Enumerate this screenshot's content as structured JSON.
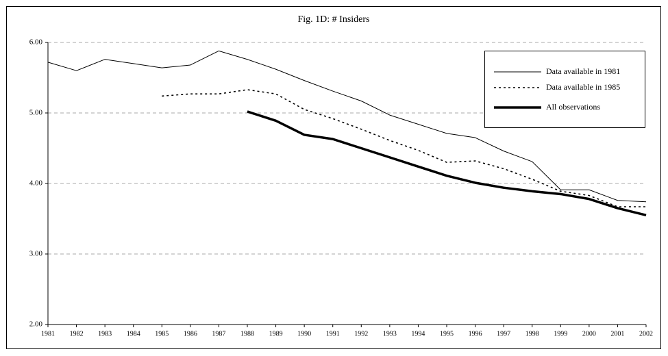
{
  "chart_data": {
    "type": "line",
    "title": "Fig. 1D: # Insiders",
    "categories": [
      "1981",
      "1982",
      "1983",
      "1984",
      "1985",
      "1986",
      "1987",
      "1988",
      "1989",
      "1990",
      "1991",
      "1992",
      "1993",
      "1994",
      "1995",
      "1996",
      "1997",
      "1998",
      "1999",
      "2000",
      "2001",
      "2002"
    ],
    "series": [
      {
        "name": "Data available in 1981",
        "color": "#000000",
        "style": "solid",
        "width": 1,
        "values": [
          5.72,
          5.6,
          5.76,
          5.7,
          5.64,
          5.68,
          5.88,
          5.76,
          5.62,
          5.46,
          5.31,
          5.17,
          4.97,
          4.84,
          4.71,
          4.65,
          4.46,
          4.31,
          3.91,
          3.91,
          3.76,
          3.74
        ]
      },
      {
        "name": "Data available in 1985",
        "color": "#000000",
        "style": "dotted",
        "width": 1.6,
        "values": [
          null,
          null,
          null,
          null,
          5.24,
          5.27,
          5.27,
          5.33,
          5.27,
          5.05,
          4.92,
          4.77,
          4.61,
          4.47,
          4.3,
          4.32,
          4.21,
          4.06,
          3.89,
          3.83,
          3.67,
          3.67
        ]
      },
      {
        "name": "All observations",
        "color": "#000000",
        "style": "solid",
        "width": 3.5,
        "values": [
          null,
          null,
          null,
          null,
          null,
          null,
          null,
          5.02,
          4.89,
          4.69,
          4.63,
          4.5,
          4.37,
          4.24,
          4.11,
          4.01,
          3.94,
          3.89,
          3.85,
          3.78,
          3.65,
          3.55
        ]
      }
    ],
    "ylim": [
      2,
      6
    ],
    "yticks": [
      {
        "value": 2,
        "label": "2.00"
      },
      {
        "value": 3,
        "label": "3.00"
      },
      {
        "value": 4,
        "label": "4.00"
      },
      {
        "value": 5,
        "label": "5.00"
      },
      {
        "value": 6,
        "label": "6.00"
      }
    ],
    "grid": true,
    "legend": "top-right"
  }
}
